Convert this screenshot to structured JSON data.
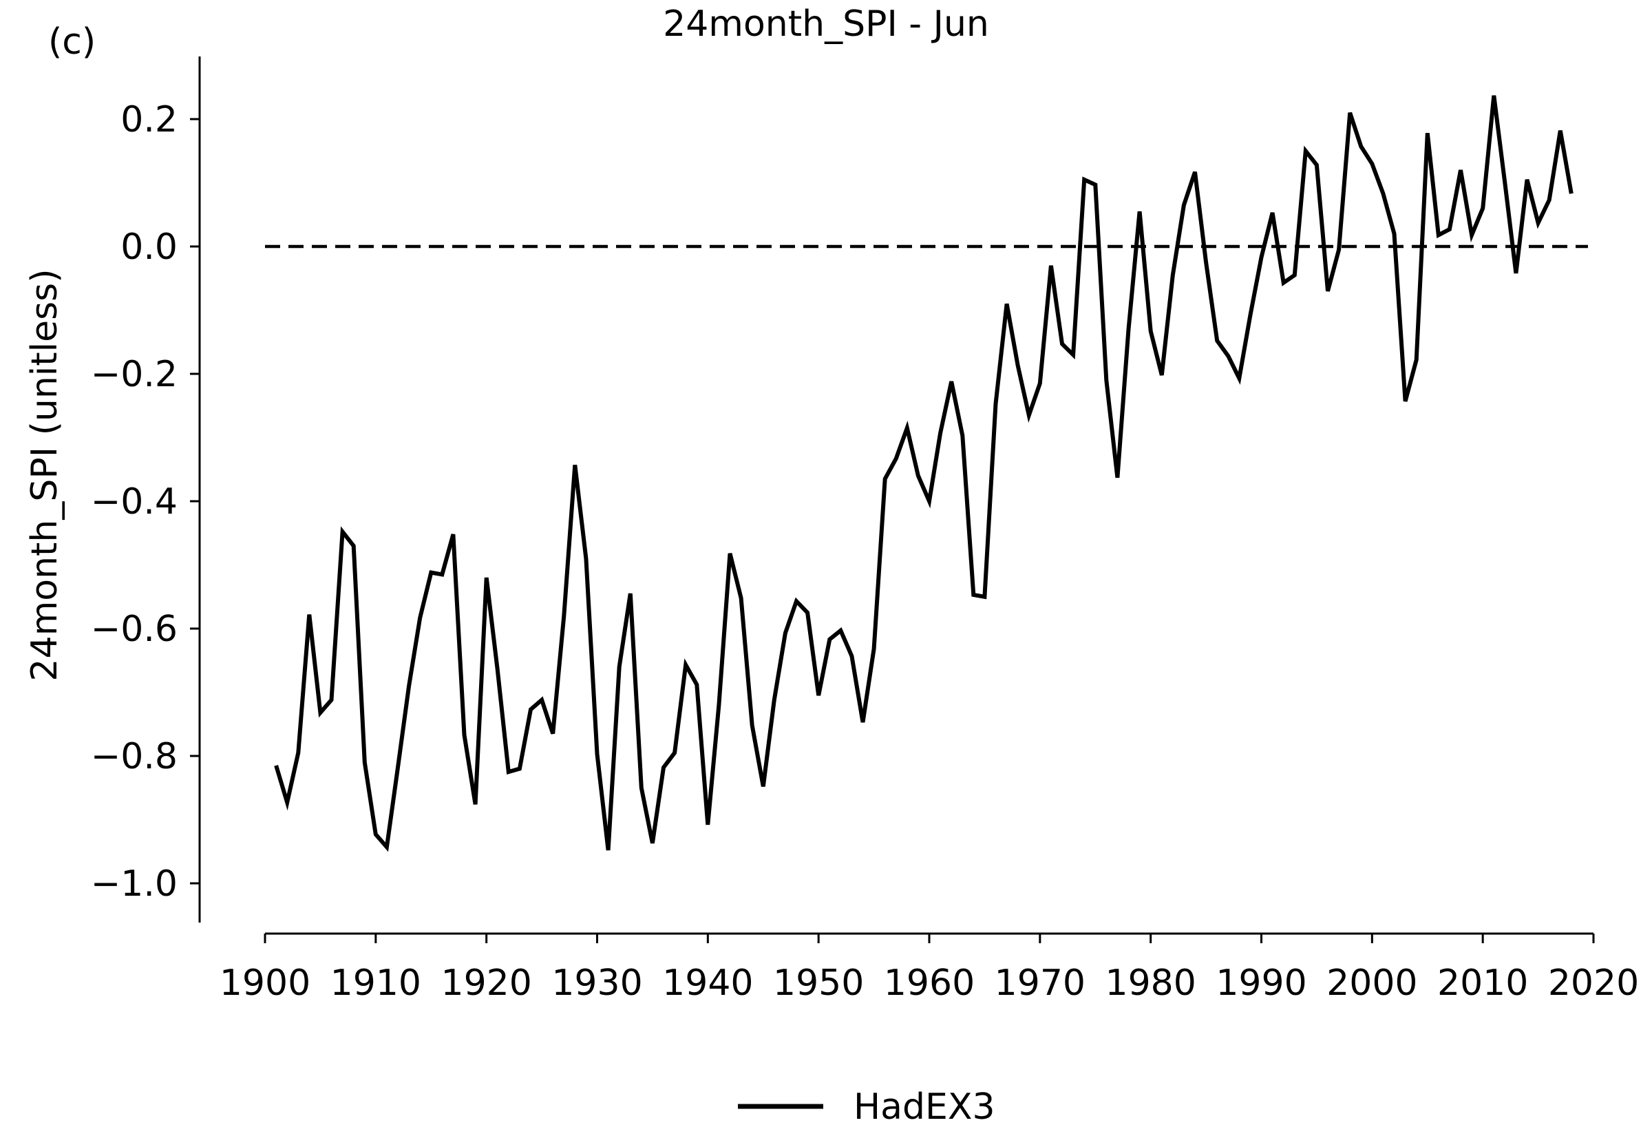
{
  "panel_label": "(c)",
  "chart_data": {
    "type": "line",
    "title": "24month_SPI - Jun",
    "xlabel": "",
    "ylabel": "24month_SPI (unitless)",
    "xlim": [
      1900,
      2020
    ],
    "ylim": [
      -1.05,
      0.3
    ],
    "xticks": [
      1900,
      1910,
      1920,
      1930,
      1940,
      1950,
      1960,
      1970,
      1980,
      1990,
      2000,
      2010,
      2020
    ],
    "yticks": [
      -1.0,
      -0.8,
      -0.6,
      -0.4,
      -0.2,
      0.0,
      0.2
    ],
    "ytick_labels": [
      "−1.0",
      "−0.8",
      "−0.6",
      "−0.4",
      "−0.2",
      "0.0",
      "0.2"
    ],
    "grid": false,
    "legend_position": "bottom-center",
    "reference_line": {
      "y": 0.0,
      "style": "dashed",
      "color": "#000000"
    },
    "series": [
      {
        "name": "HadEX3",
        "color": "#000000",
        "x": [
          1901,
          1902,
          1903,
          1904,
          1905,
          1906,
          1907,
          1908,
          1909,
          1910,
          1911,
          1912,
          1913,
          1914,
          1915,
          1916,
          1917,
          1918,
          1919,
          1920,
          1921,
          1922,
          1923,
          1924,
          1925,
          1926,
          1927,
          1928,
          1929,
          1930,
          1931,
          1932,
          1933,
          1934,
          1935,
          1936,
          1937,
          1938,
          1939,
          1940,
          1941,
          1942,
          1943,
          1944,
          1945,
          1946,
          1947,
          1948,
          1949,
          1950,
          1951,
          1952,
          1953,
          1954,
          1955,
          1956,
          1957,
          1958,
          1959,
          1960,
          1961,
          1962,
          1963,
          1964,
          1965,
          1966,
          1967,
          1968,
          1969,
          1970,
          1971,
          1972,
          1973,
          1974,
          1975,
          1976,
          1977,
          1978,
          1979,
          1980,
          1981,
          1982,
          1983,
          1984,
          1985,
          1986,
          1987,
          1988,
          1989,
          1990,
          1991,
          1992,
          1993,
          1994,
          1995,
          1996,
          1997,
          1998,
          1999,
          2000,
          2001,
          2002,
          2003,
          2004,
          2005,
          2006,
          2007,
          2008,
          2009,
          2010,
          2011,
          2012,
          2013,
          2014,
          2015,
          2016,
          2017,
          2018
        ],
        "values": [
          -0.815,
          -0.873,
          -0.795,
          -0.578,
          -0.732,
          -0.712,
          -0.448,
          -0.47,
          -0.81,
          -0.923,
          -0.943,
          -0.818,
          -0.69,
          -0.583,
          -0.512,
          -0.515,
          -0.452,
          -0.767,
          -0.876,
          -0.52,
          -0.665,
          -0.825,
          -0.82,
          -0.727,
          -0.712,
          -0.765,
          -0.58,
          -0.343,
          -0.49,
          -0.797,
          -0.948,
          -0.66,
          -0.545,
          -0.85,
          -0.937,
          -0.818,
          -0.795,
          -0.657,
          -0.688,
          -0.908,
          -0.72,
          -0.482,
          -0.552,
          -0.752,
          -0.848,
          -0.712,
          -0.607,
          -0.557,
          -0.575,
          -0.705,
          -0.617,
          -0.603,
          -0.643,
          -0.747,
          -0.632,
          -0.365,
          -0.333,
          -0.285,
          -0.36,
          -0.4,
          -0.293,
          -0.212,
          -0.297,
          -0.547,
          -0.55,
          -0.247,
          -0.09,
          -0.187,
          -0.265,
          -0.215,
          -0.03,
          -0.153,
          -0.17,
          0.105,
          0.097,
          -0.21,
          -0.363,
          -0.13,
          0.055,
          -0.133,
          -0.202,
          -0.045,
          0.065,
          0.117,
          -0.025,
          -0.148,
          -0.172,
          -0.207,
          -0.108,
          -0.017,
          0.053,
          -0.057,
          -0.045,
          0.15,
          0.128,
          -0.07,
          -0.005,
          0.21,
          0.157,
          0.13,
          0.083,
          0.02,
          -0.243,
          -0.178,
          0.178,
          0.018,
          0.027,
          0.12,
          0.018,
          0.06,
          0.237,
          0.1,
          -0.042,
          0.105,
          0.037,
          0.073,
          0.182,
          0.083
        ]
      }
    ]
  }
}
